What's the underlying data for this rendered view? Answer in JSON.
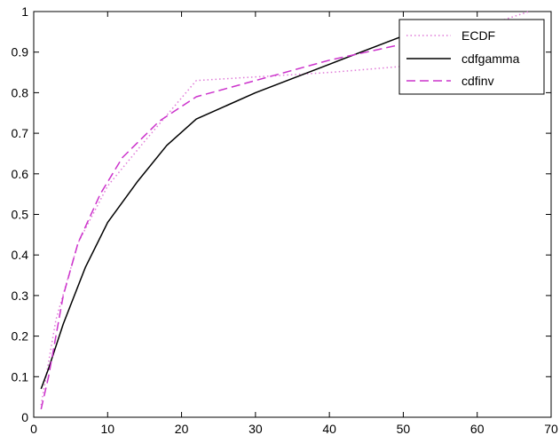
{
  "chart_data": {
    "type": "line",
    "title": "",
    "xlabel": "",
    "ylabel": "",
    "xlim": [
      0,
      70
    ],
    "ylim": [
      0,
      1
    ],
    "xticks": [
      0,
      10,
      20,
      30,
      40,
      50,
      60,
      70
    ],
    "yticks": [
      0,
      0.1,
      0.2,
      0.3,
      0.4,
      0.5,
      0.6,
      0.7,
      0.8,
      0.9,
      1
    ],
    "grid": false,
    "legend_position": "top-right",
    "series": [
      {
        "name": "ECDF",
        "style": "dotted",
        "color": "#e07ad8",
        "x": [
          1,
          3,
          6,
          10,
          15,
          22,
          40,
          50,
          62,
          67
        ],
        "y": [
          0.03,
          0.24,
          0.43,
          0.57,
          0.68,
          0.83,
          0.85,
          0.865,
          0.97,
          1.0
        ]
      },
      {
        "name": "cdfgamma",
        "style": "solid",
        "color": "#000000",
        "x": [
          1,
          2,
          4,
          7,
          10,
          14,
          18,
          22,
          30,
          40,
          50,
          55
        ],
        "y": [
          0.07,
          0.12,
          0.23,
          0.37,
          0.48,
          0.58,
          0.67,
          0.735,
          0.8,
          0.87,
          0.94,
          0.96
        ]
      },
      {
        "name": "cdfinv",
        "style": "dashed",
        "color": "#cc33cc",
        "x": [
          1,
          2,
          4,
          6,
          9,
          12,
          17,
          22,
          30,
          40,
          50,
          55
        ],
        "y": [
          0.02,
          0.1,
          0.3,
          0.43,
          0.55,
          0.64,
          0.73,
          0.79,
          0.83,
          0.88,
          0.92,
          0.94
        ]
      }
    ]
  }
}
